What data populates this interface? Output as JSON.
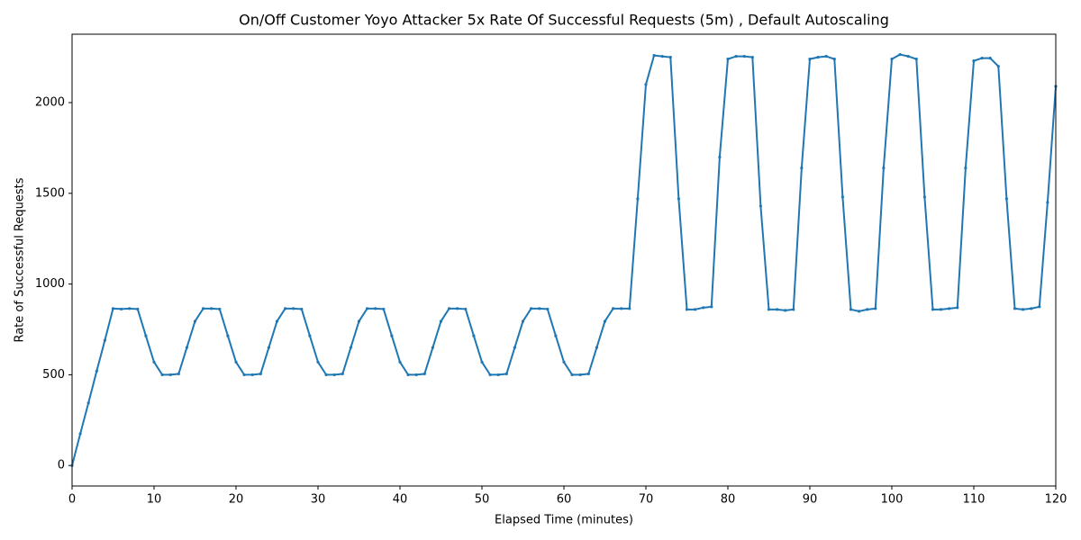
{
  "chart_data": {
    "type": "line",
    "title": "On/Off Customer Yoyo Attacker 5x Rate Of Successful Requests (5m) , Default Autoscaling",
    "x_label": "Elapsed Time (minutes)",
    "y_label": "Rate of Successful Requests",
    "color": "#1f77b4",
    "x": [
      0,
      1,
      2,
      3,
      4,
      5,
      6,
      7,
      8,
      9,
      10,
      11,
      12,
      13,
      14,
      15,
      16,
      17,
      18,
      19,
      20,
      21,
      22,
      23,
      24,
      25,
      26,
      27,
      28,
      29,
      30,
      31,
      32,
      33,
      34,
      35,
      36,
      37,
      38,
      39,
      40,
      41,
      42,
      43,
      44,
      45,
      46,
      47,
      48,
      49,
      50,
      51,
      52,
      53,
      54,
      55,
      56,
      57,
      58,
      59,
      60,
      61,
      62,
      63,
      64,
      65,
      66,
      67,
      68,
      69,
      70,
      71,
      72,
      73,
      74,
      75,
      76,
      77,
      78,
      79,
      80,
      81,
      82,
      83,
      84,
      85,
      86,
      87,
      88,
      89,
      90,
      91,
      92,
      93,
      94,
      95,
      96,
      97,
      98,
      99,
      100,
      101,
      102,
      103,
      104,
      105,
      106,
      107,
      108,
      109,
      110,
      111,
      112,
      113,
      114,
      115,
      116,
      117,
      118,
      119,
      120
    ],
    "values": [
      0,
      175,
      345,
      520,
      690,
      865,
      862,
      865,
      862,
      715,
      570,
      500,
      500,
      505,
      650,
      795,
      865,
      865,
      862,
      715,
      570,
      500,
      500,
      505,
      650,
      795,
      865,
      865,
      862,
      715,
      570,
      500,
      500,
      505,
      650,
      795,
      865,
      865,
      862,
      715,
      570,
      500,
      500,
      505,
      650,
      795,
      865,
      865,
      862,
      715,
      570,
      500,
      500,
      505,
      650,
      795,
      865,
      865,
      862,
      715,
      570,
      500,
      500,
      505,
      650,
      795,
      865,
      865,
      865,
      1470,
      2100,
      2260,
      2255,
      2250,
      1470,
      860,
      860,
      870,
      875,
      1700,
      2240,
      2255,
      2255,
      2250,
      1430,
      860,
      860,
      855,
      860,
      1640,
      2240,
      2250,
      2255,
      2240,
      1480,
      860,
      850,
      860,
      865,
      1640,
      2240,
      2265,
      2255,
      2240,
      1480,
      860,
      860,
      865,
      870,
      1640,
      2230,
      2245,
      2245,
      2200,
      1470,
      865,
      860,
      865,
      875,
      1450,
      2090
    ],
    "xlim": [
      0,
      120
    ],
    "ylim": [
      -113,
      2377
    ],
    "xticks": [
      0,
      10,
      20,
      30,
      40,
      50,
      60,
      70,
      80,
      90,
      100,
      110,
      120
    ],
    "yticks": [
      0,
      500,
      1000,
      1500,
      2000
    ],
    "grid": false
  }
}
